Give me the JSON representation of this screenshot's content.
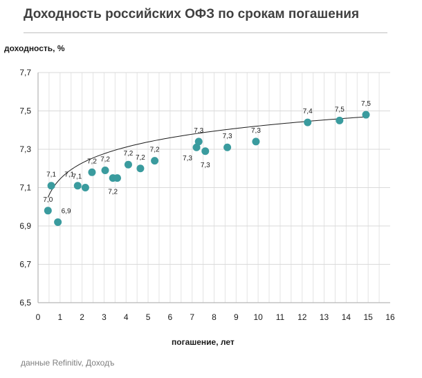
{
  "chart_data": {
    "type": "scatter",
    "title": "Доходность российских ОФЗ по срокам погашения",
    "ylabel": "доходность, %",
    "xlabel": "погашение, лет",
    "source": "данные Refinitiv, Доходъ",
    "xlim": [
      0,
      16
    ],
    "ylim": [
      6.5,
      7.7
    ],
    "x_ticks": [
      0,
      1,
      2,
      3,
      4,
      5,
      6,
      7,
      8,
      9,
      10,
      11,
      12,
      13,
      14,
      15,
      16
    ],
    "y_ticks": [
      6.5,
      6.7,
      6.9,
      7.1,
      7.3,
      7.5,
      7.7
    ],
    "grid": true,
    "marker_color": "#3a9b9e",
    "trendline": {
      "type": "logarithmic",
      "a": 7.145,
      "b": 0.12,
      "x_range": [
        0.45,
        14.9
      ]
    },
    "points": [
      {
        "x": 0.45,
        "y": 6.98,
        "label": "7,0",
        "label_pos": "above"
      },
      {
        "x": 0.6,
        "y": 7.11,
        "label": "7,1",
        "label_pos": "above"
      },
      {
        "x": 0.9,
        "y": 6.92,
        "label": "6,9",
        "label_pos": "above-right"
      },
      {
        "x": 1.8,
        "y": 7.11,
        "label": "7,1",
        "label_pos": "above-left"
      },
      {
        "x": 2.15,
        "y": 7.1,
        "label": "7,1",
        "label_pos": "above-left"
      },
      {
        "x": 2.45,
        "y": 7.18,
        "label": "7,2",
        "label_pos": "above"
      },
      {
        "x": 3.05,
        "y": 7.19,
        "label": "7,2",
        "label_pos": "above"
      },
      {
        "x": 3.4,
        "y": 7.15,
        "label": "7,2",
        "label_pos": "below"
      },
      {
        "x": 3.6,
        "y": 7.15,
        "label": "",
        "label_pos": "none"
      },
      {
        "x": 4.1,
        "y": 7.22,
        "label": "7,2",
        "label_pos": "above"
      },
      {
        "x": 4.65,
        "y": 7.2,
        "label": "7,2",
        "label_pos": "above"
      },
      {
        "x": 5.3,
        "y": 7.24,
        "label": "7,2",
        "label_pos": "above"
      },
      {
        "x": 7.2,
        "y": 7.31,
        "label": "7,3",
        "label_pos": "below-left"
      },
      {
        "x": 7.3,
        "y": 7.34,
        "label": "7,3",
        "label_pos": "above"
      },
      {
        "x": 7.6,
        "y": 7.29,
        "label": "7,3",
        "label_pos": "below"
      },
      {
        "x": 8.6,
        "y": 7.31,
        "label": "7,3",
        "label_pos": "above"
      },
      {
        "x": 9.9,
        "y": 7.34,
        "label": "7,3",
        "label_pos": "above"
      },
      {
        "x": 12.25,
        "y": 7.44,
        "label": "7,4",
        "label_pos": "above"
      },
      {
        "x": 13.7,
        "y": 7.45,
        "label": "7,5",
        "label_pos": "above"
      },
      {
        "x": 14.9,
        "y": 7.48,
        "label": "7,5",
        "label_pos": "above"
      }
    ]
  }
}
